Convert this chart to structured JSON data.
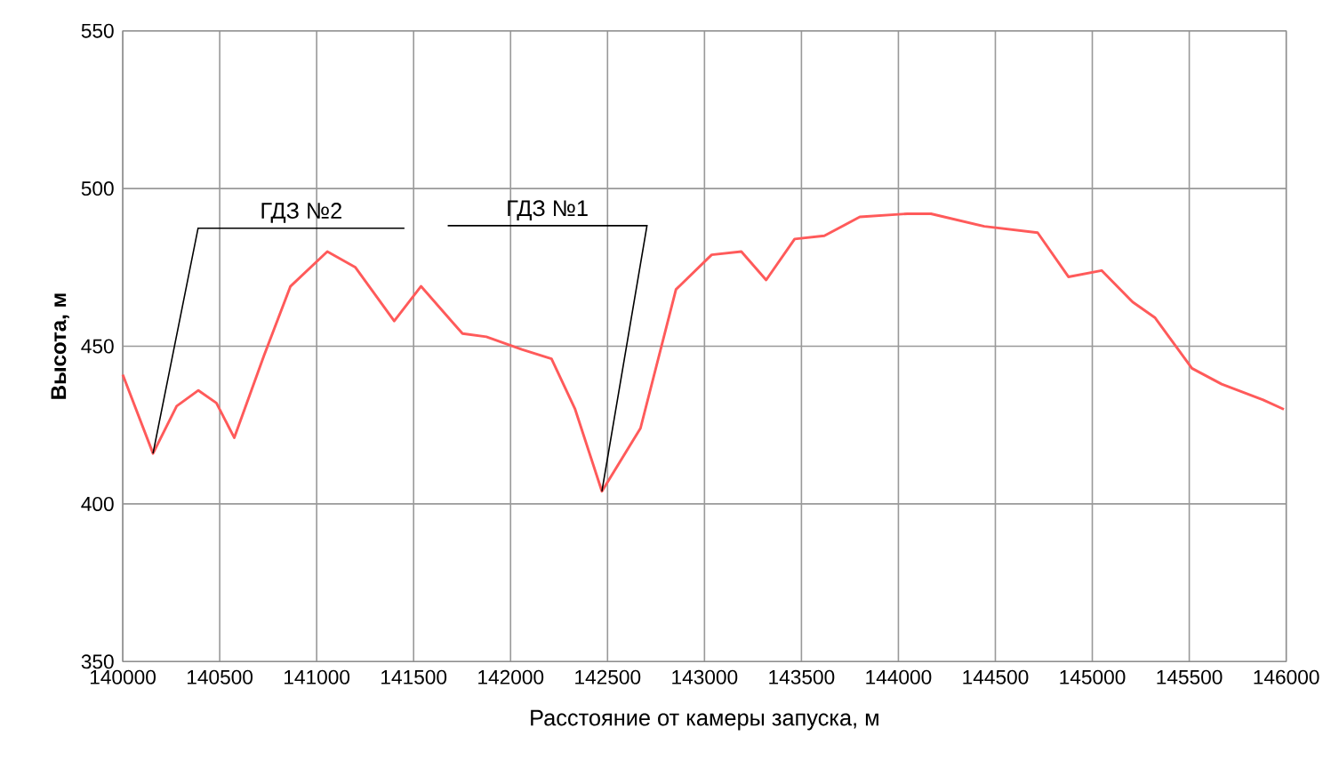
{
  "chart_data": {
    "type": "line",
    "xlabel": "Расстояние от камеры запуска, м",
    "ylabel": "Высота, м",
    "x": [
      140000,
      140156,
      140278,
      140390,
      140483,
      140575,
      140728,
      140865,
      141055,
      141200,
      141400,
      141538,
      141752,
      141875,
      142058,
      142211,
      142333,
      142471,
      142670,
      142853,
      143037,
      143190,
      143318,
      143465,
      143618,
      143801,
      144046,
      144168,
      144443,
      144718,
      144877,
      145048,
      145208,
      145324,
      145514,
      145667,
      145881,
      145988
    ],
    "series": [
      {
        "color": "#ff5a5a",
        "values": [
          441,
          416,
          431,
          436,
          432,
          421,
          447,
          469,
          480,
          475,
          458,
          469,
          454,
          453,
          449,
          446,
          430,
          404,
          424,
          468,
          479,
          480,
          471,
          484,
          485,
          491,
          492,
          492,
          488,
          486,
          472,
          474,
          464,
          459,
          443,
          438,
          433,
          430
        ]
      }
    ],
    "xlim": [
      140000,
      146000
    ],
    "xticks": [
      140000,
      140500,
      141000,
      141500,
      142000,
      142500,
      143000,
      143500,
      144000,
      144500,
      145000,
      145500,
      146000
    ],
    "ylim": [
      350,
      550
    ],
    "yticks": [
      350,
      400,
      450,
      500,
      550
    ],
    "grid": true,
    "marker": "none",
    "line_style": "solid",
    "annotations": [
      {
        "text": "ГДЗ №2",
        "x": 140156,
        "y": 416
      },
      {
        "text": "ГДЗ №1",
        "x": 142471,
        "y": 404
      }
    ]
  }
}
